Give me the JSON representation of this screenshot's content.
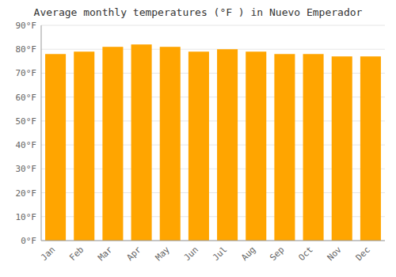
{
  "chart_data": {
    "type": "bar",
    "title": "Average monthly temperatures (°F ) in Nuevo Emperador",
    "categories": [
      "Jan",
      "Feb",
      "Mar",
      "Apr",
      "May",
      "Jun",
      "Jul",
      "Aug",
      "Sep",
      "Oct",
      "Nov",
      "Dec"
    ],
    "values": [
      78,
      79,
      81,
      82,
      81,
      79,
      80,
      79,
      78,
      78,
      77,
      77
    ],
    "color": "#FFA500",
    "ylim": [
      0,
      90
    ],
    "yticks": [
      {
        "value": 0,
        "label": "0°F"
      },
      {
        "value": 10,
        "label": "10°F"
      },
      {
        "value": 20,
        "label": "20°F"
      },
      {
        "value": 30,
        "label": "30°F"
      },
      {
        "value": 40,
        "label": "40°F"
      },
      {
        "value": 50,
        "label": "50°F"
      },
      {
        "value": 60,
        "label": "60°F"
      },
      {
        "value": 70,
        "label": "70°F"
      },
      {
        "value": 80,
        "label": "80°F"
      },
      {
        "value": 90,
        "label": "90°F"
      }
    ],
    "grid": true
  }
}
